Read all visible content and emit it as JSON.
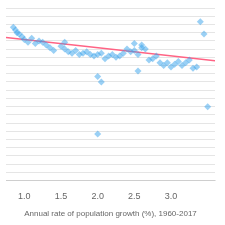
{
  "chart_data": {
    "type": "scatter",
    "xlabel": "Annual rate of population growth (%), 1960-2017",
    "xlim": [
      0.75,
      3.6
    ],
    "ylim": [
      -4.5,
      1.8
    ],
    "xticks": [
      {
        "value": 1.0,
        "label": "1.0"
      },
      1.5,
      {
        "value": 2.0,
        "label": "2.0"
      },
      2.5,
      {
        "value": 3.0,
        "label": "3.0"
      }
    ],
    "yticks": [
      -4.5,
      -4.2,
      -3.9,
      -3.6,
      -3.3,
      -3.0,
      -2.7,
      -2.4,
      -2.1,
      -1.8,
      -1.5,
      -1.2,
      -0.9,
      -0.6,
      -0.3,
      0.0,
      0.3,
      0.6,
      0.9,
      1.2,
      1.5,
      1.8
    ],
    "grid": "y",
    "tick_labels": "x",
    "series": [
      {
        "type": "scatter",
        "marker": "diamond",
        "x": [
          0.85,
          0.9,
          0.93,
          0.97,
          0.88,
          1.0,
          1.05,
          1.1,
          1.15,
          1.2,
          1.3,
          1.35,
          1.4,
          1.5,
          1.55,
          1.6,
          1.65,
          1.7,
          1.75,
          1.8,
          1.85,
          1.9,
          1.95,
          2.0,
          2.05,
          2.1,
          2.15,
          2.2,
          2.25,
          2.3,
          2.35,
          2.4,
          2.45,
          2.5,
          2.55,
          2.6,
          2.65,
          2.7,
          2.75,
          2.8,
          2.85,
          2.9,
          2.95,
          3.0,
          3.05,
          3.1,
          3.15,
          3.2,
          3.25,
          3.3,
          3.35,
          1.55,
          2.0,
          2.05,
          2.0,
          3.4,
          3.45,
          3.5,
          2.5,
          2.55,
          2.6,
          1.25
        ],
        "values": [
          1.1,
          0.9,
          0.85,
          0.75,
          1.0,
          0.65,
          0.55,
          0.7,
          0.5,
          0.6,
          0.45,
          0.35,
          0.25,
          0.4,
          0.3,
          0.2,
          0.15,
          0.25,
          0.1,
          0.15,
          0.2,
          0.1,
          0.05,
          0.1,
          0.15,
          -0.05,
          0.05,
          0.1,
          -0.0,
          0.05,
          0.15,
          0.3,
          0.2,
          0.25,
          0.1,
          0.35,
          0.3,
          -0.1,
          -0.05,
          0.05,
          -0.2,
          -0.3,
          -0.2,
          -0.35,
          -0.25,
          -0.15,
          -0.3,
          -0.2,
          -0.1,
          -0.4,
          -0.35,
          0.55,
          -0.7,
          -0.9,
          -2.8,
          1.3,
          0.85,
          -1.8,
          0.5,
          -0.5,
          0.45,
          0.55
        ]
      },
      {
        "type": "line",
        "line_style": "solid",
        "x": [
          0.75,
          3.6
        ],
        "values": [
          0.725,
          -0.13
        ]
      }
    ]
  }
}
